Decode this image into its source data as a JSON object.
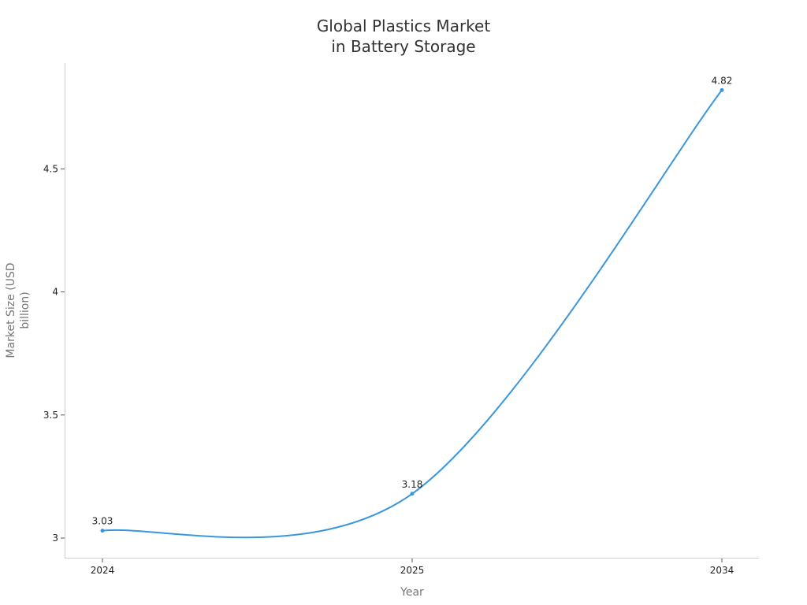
{
  "chart_data": {
    "type": "line",
    "title": [
      "Global Plastics Market",
      "in Battery Storage"
    ],
    "xlabel": "Year",
    "ylabel": [
      "Market Size (USD",
      "billion)"
    ],
    "categories": [
      "2024",
      "2025",
      "2034"
    ],
    "series": [
      {
        "values": [
          3.03,
          3.18,
          4.82
        ],
        "data_labels": [
          "3.03",
          "3.18",
          "4.82"
        ],
        "color": "#3a96dd"
      }
    ],
    "ylim": [
      2.92,
      4.93
    ],
    "yticks": [
      3,
      3.5,
      4,
      4.5
    ],
    "ytick_labels": [
      "3",
      "3.5",
      "4",
      "4.5"
    ],
    "grid": false,
    "smooth": true
  }
}
